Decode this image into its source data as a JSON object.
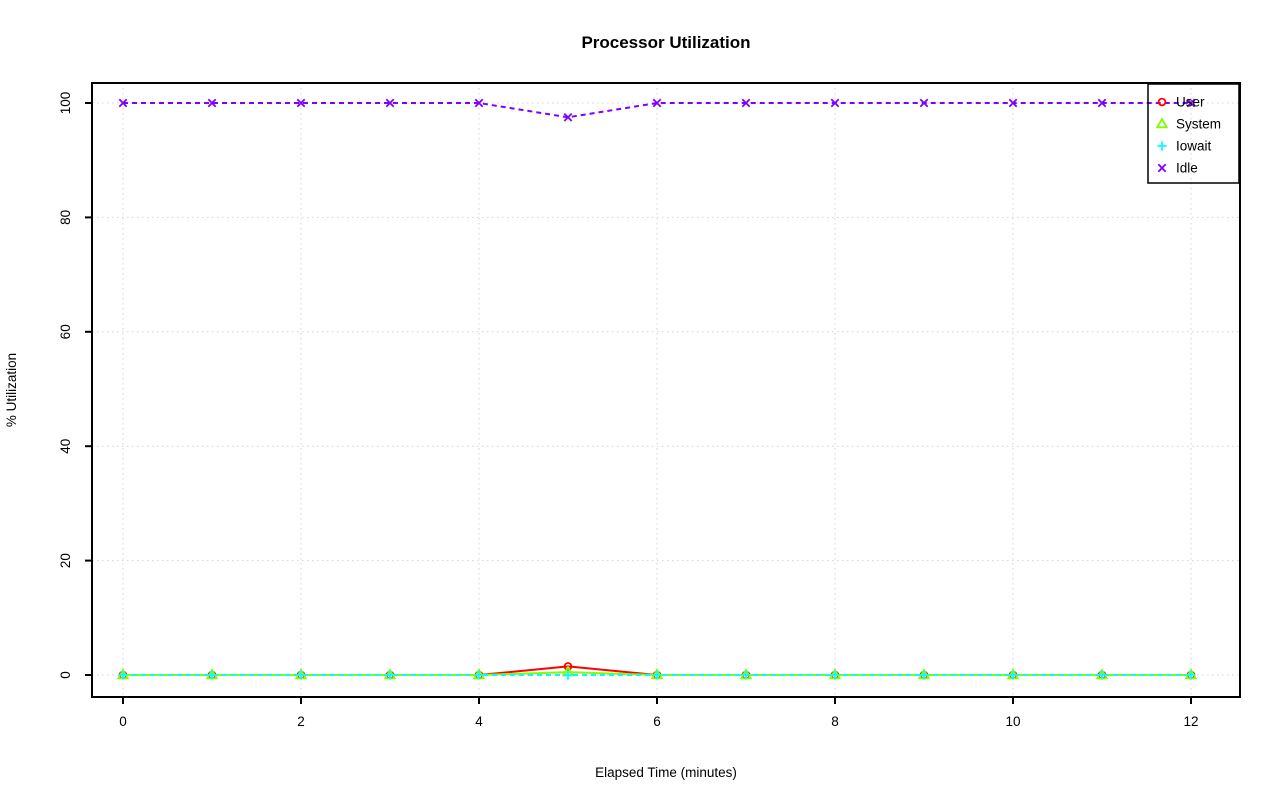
{
  "chart_data": {
    "type": "line",
    "title": "Processor Utilization",
    "xlabel": "Elapsed Time (minutes)",
    "ylabel": "% Utilization",
    "x": [
      0,
      1,
      2,
      3,
      4,
      5,
      6,
      7,
      8,
      9,
      10,
      11,
      12
    ],
    "xticks": [
      0,
      2,
      4,
      6,
      8,
      10,
      12
    ],
    "yticks": [
      0,
      20,
      40,
      60,
      80,
      100
    ],
    "xlim": [
      -0.5,
      12.5
    ],
    "ylim": [
      -4,
      104
    ],
    "grid": true,
    "grid_color": "#d3d3d3",
    "background_color": "#ffffff",
    "axis_color": "#000000",
    "legend_position": "topright",
    "series": [
      {
        "name": "User",
        "color": "#ff0000",
        "marker": "circle",
        "line": "solid",
        "values": [
          0,
          0,
          0,
          0,
          0,
          1.5,
          0,
          0,
          0,
          0,
          0,
          0,
          0
        ]
      },
      {
        "name": "System",
        "color": "#80ff00",
        "marker": "triangle",
        "line": "solid",
        "values": [
          0,
          0,
          0,
          0,
          0,
          0.5,
          0,
          0,
          0,
          0,
          0,
          0,
          0
        ]
      },
      {
        "name": "Iowait",
        "color": "#00ffff",
        "marker": "plus",
        "line": "dashed",
        "values": [
          0,
          0,
          0,
          0,
          0,
          0,
          0,
          0,
          0,
          0,
          0,
          0,
          0
        ]
      },
      {
        "name": "Idle",
        "color": "#8000ff",
        "marker": "x",
        "line": "dashed",
        "values": [
          100,
          100,
          100,
          100,
          100,
          97.5,
          100,
          100,
          100,
          100,
          100,
          100,
          100
        ]
      }
    ]
  }
}
